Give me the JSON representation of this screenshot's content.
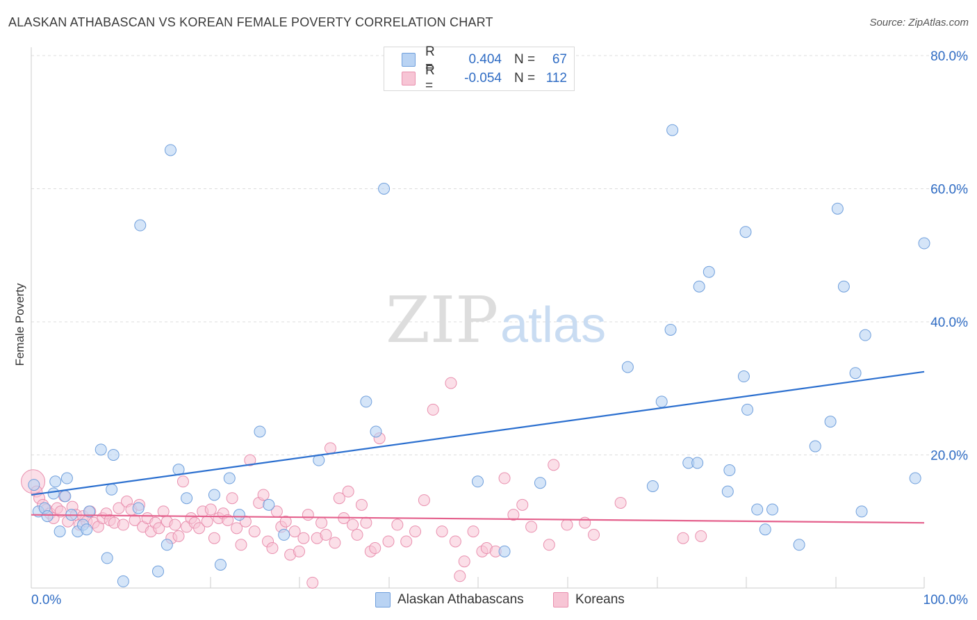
{
  "title": "ALASKAN ATHABASCAN VS KOREAN FEMALE POVERTY CORRELATION CHART",
  "source": "Source: ZipAtlas.com",
  "watermark": {
    "zip": "ZIP",
    "atlas": "atlas"
  },
  "legend": {
    "r_label": "R =",
    "n_label": "N =",
    "rows": [
      {
        "r": "0.404",
        "n": "67"
      },
      {
        "r": "-0.054",
        "n": "112"
      }
    ]
  },
  "colors": {
    "blue_fill": "#b9d3f3",
    "blue_stroke": "#6f9fdc",
    "blue_line": "#2b6fcf",
    "pink_fill": "#f7c5d5",
    "pink_stroke": "#e98fae",
    "pink_line": "#e4608c",
    "axis_label": "#2f6cc4",
    "grid": "#dcdcdc"
  },
  "chart_data": {
    "type": "scatter",
    "title": "ALASKAN ATHABASCAN VS KOREAN FEMALE POVERTY CORRELATION CHART",
    "xlabel": "",
    "ylabel": "Female Poverty",
    "xlim": [
      0,
      100
    ],
    "ylim": [
      0,
      80
    ],
    "x_tick_labels": [
      "0.0%",
      "100.0%"
    ],
    "y_ticks": [
      20,
      40,
      60,
      80
    ],
    "y_tick_labels": [
      "20.0%",
      "40.0%",
      "60.0%",
      "80.0%"
    ],
    "series": [
      {
        "name": "Alaskan Athabascans",
        "r": 0.404,
        "n": 67,
        "trend": {
          "x": [
            0,
            100
          ],
          "y": [
            14.0,
            32.5
          ]
        },
        "points": [
          [
            0.3,
            15.5
          ],
          [
            0.8,
            11.5
          ],
          [
            1.5,
            12.0
          ],
          [
            1.8,
            10.8
          ],
          [
            2.5,
            14.2
          ],
          [
            2.7,
            16.0
          ],
          [
            3.2,
            8.5
          ],
          [
            3.8,
            13.8
          ],
          [
            4.0,
            16.5
          ],
          [
            4.5,
            11.0
          ],
          [
            5.2,
            8.5
          ],
          [
            5.8,
            9.5
          ],
          [
            6.2,
            8.8
          ],
          [
            6.5,
            11.5
          ],
          [
            7.8,
            20.8
          ],
          [
            8.5,
            4.5
          ],
          [
            9.0,
            14.8
          ],
          [
            9.2,
            20.0
          ],
          [
            10.3,
            1.0
          ],
          [
            12.0,
            12.0
          ],
          [
            12.2,
            54.5
          ],
          [
            14.2,
            2.5
          ],
          [
            15.2,
            6.5
          ],
          [
            15.6,
            65.8
          ],
          [
            16.5,
            17.8
          ],
          [
            17.4,
            13.5
          ],
          [
            20.5,
            14.0
          ],
          [
            21.2,
            3.5
          ],
          [
            22.2,
            16.5
          ],
          [
            23.3,
            11.0
          ],
          [
            25.6,
            23.5
          ],
          [
            26.6,
            12.5
          ],
          [
            28.3,
            8.0
          ],
          [
            32.2,
            19.2
          ],
          [
            37.5,
            28.0
          ],
          [
            38.6,
            23.5
          ],
          [
            39.5,
            60.0
          ],
          [
            50.0,
            16.0
          ],
          [
            53.0,
            5.5
          ],
          [
            57.0,
            15.8
          ],
          [
            66.8,
            33.2
          ],
          [
            69.6,
            15.3
          ],
          [
            70.6,
            28.0
          ],
          [
            71.6,
            38.8
          ],
          [
            71.8,
            68.8
          ],
          [
            73.6,
            18.8
          ],
          [
            74.6,
            18.8
          ],
          [
            74.8,
            45.3
          ],
          [
            75.9,
            47.5
          ],
          [
            78.0,
            14.5
          ],
          [
            78.2,
            17.7
          ],
          [
            79.8,
            31.8
          ],
          [
            80.0,
            53.5
          ],
          [
            80.2,
            26.8
          ],
          [
            81.3,
            11.8
          ],
          [
            82.2,
            8.8
          ],
          [
            83.0,
            11.8
          ],
          [
            86.0,
            6.5
          ],
          [
            87.8,
            21.3
          ],
          [
            89.5,
            25.0
          ],
          [
            90.3,
            57.0
          ],
          [
            91.0,
            45.3
          ],
          [
            92.3,
            32.3
          ],
          [
            93.0,
            11.5
          ],
          [
            93.4,
            38.0
          ],
          [
            99.0,
            16.5
          ],
          [
            100.0,
            51.8
          ]
        ]
      },
      {
        "name": "Koreans",
        "r": -0.054,
        "n": 112,
        "trend": {
          "x": [
            0,
            100
          ],
          "y": [
            11.0,
            9.8
          ]
        },
        "points": [
          [
            0.2,
            16.0
          ],
          [
            0.6,
            14.5
          ],
          [
            0.9,
            13.5
          ],
          [
            1.3,
            12.5
          ],
          [
            1.7,
            11.8
          ],
          [
            2.1,
            11.2
          ],
          [
            2.5,
            10.5
          ],
          [
            2.9,
            12.0
          ],
          [
            3.3,
            11.5
          ],
          [
            3.7,
            13.8
          ],
          [
            4.1,
            10.0
          ],
          [
            4.6,
            12.2
          ],
          [
            5.0,
            11.0
          ],
          [
            5.4,
            9.5
          ],
          [
            5.8,
            10.8
          ],
          [
            6.2,
            10.0
          ],
          [
            6.6,
            11.5
          ],
          [
            7.0,
            9.8
          ],
          [
            7.5,
            9.2
          ],
          [
            8.0,
            10.5
          ],
          [
            8.4,
            11.2
          ],
          [
            8.8,
            10.2
          ],
          [
            9.3,
            9.8
          ],
          [
            9.8,
            12.0
          ],
          [
            10.3,
            9.5
          ],
          [
            10.7,
            13.0
          ],
          [
            11.2,
            11.8
          ],
          [
            11.6,
            10.2
          ],
          [
            12.1,
            12.5
          ],
          [
            12.5,
            9.2
          ],
          [
            13.0,
            10.5
          ],
          [
            13.4,
            8.5
          ],
          [
            13.9,
            9.8
          ],
          [
            14.3,
            9.0
          ],
          [
            14.8,
            11.5
          ],
          [
            15.2,
            10.0
          ],
          [
            15.7,
            7.5
          ],
          [
            16.1,
            9.5
          ],
          [
            16.5,
            7.8
          ],
          [
            17.0,
            16.0
          ],
          [
            17.4,
            9.2
          ],
          [
            17.9,
            10.5
          ],
          [
            18.3,
            9.8
          ],
          [
            18.8,
            9.0
          ],
          [
            19.2,
            11.5
          ],
          [
            19.7,
            10.0
          ],
          [
            20.1,
            11.8
          ],
          [
            20.5,
            7.5
          ],
          [
            21.0,
            10.5
          ],
          [
            21.5,
            11.2
          ],
          [
            22.0,
            10.2
          ],
          [
            22.5,
            13.5
          ],
          [
            23.0,
            9.0
          ],
          [
            23.5,
            6.5
          ],
          [
            24.0,
            10.0
          ],
          [
            24.5,
            19.2
          ],
          [
            25.0,
            8.5
          ],
          [
            25.5,
            12.8
          ],
          [
            26.0,
            14.0
          ],
          [
            26.5,
            7.0
          ],
          [
            27.0,
            6.0
          ],
          [
            27.5,
            11.5
          ],
          [
            28.0,
            9.2
          ],
          [
            28.5,
            10.0
          ],
          [
            29.0,
            5.0
          ],
          [
            29.5,
            8.5
          ],
          [
            30.0,
            5.5
          ],
          [
            30.5,
            7.5
          ],
          [
            31.0,
            11.0
          ],
          [
            31.5,
            0.8
          ],
          [
            32.0,
            7.5
          ],
          [
            32.5,
            9.8
          ],
          [
            33.0,
            8.0
          ],
          [
            33.5,
            21.0
          ],
          [
            34.0,
            6.8
          ],
          [
            34.5,
            13.5
          ],
          [
            35.0,
            10.5
          ],
          [
            35.5,
            14.5
          ],
          [
            36.0,
            9.5
          ],
          [
            36.5,
            8.0
          ],
          [
            37.0,
            12.5
          ],
          [
            37.5,
            9.8
          ],
          [
            38.0,
            5.5
          ],
          [
            38.5,
            6.0
          ],
          [
            39.0,
            22.5
          ],
          [
            40.0,
            7.0
          ],
          [
            41.0,
            9.5
          ],
          [
            42.0,
            7.0
          ],
          [
            43.0,
            8.5
          ],
          [
            44.0,
            13.2
          ],
          [
            45.0,
            26.8
          ],
          [
            46.0,
            8.5
          ],
          [
            47.0,
            30.8
          ],
          [
            47.5,
            7.0
          ],
          [
            48.0,
            1.8
          ],
          [
            48.5,
            4.0
          ],
          [
            49.5,
            8.5
          ],
          [
            50.5,
            5.5
          ],
          [
            51.0,
            6.0
          ],
          [
            52.0,
            5.5
          ],
          [
            53.0,
            16.5
          ],
          [
            54.0,
            11.0
          ],
          [
            55.0,
            12.5
          ],
          [
            56.0,
            9.2
          ],
          [
            58.0,
            6.5
          ],
          [
            58.5,
            18.5
          ],
          [
            60.0,
            9.5
          ],
          [
            62.0,
            9.8
          ],
          [
            63.0,
            8.0
          ],
          [
            66.0,
            12.8
          ],
          [
            73.0,
            7.5
          ],
          [
            75.0,
            7.8
          ]
        ]
      }
    ]
  },
  "bottom_legend": [
    {
      "label": "Alaskan Athabascans"
    },
    {
      "label": "Koreans"
    }
  ]
}
